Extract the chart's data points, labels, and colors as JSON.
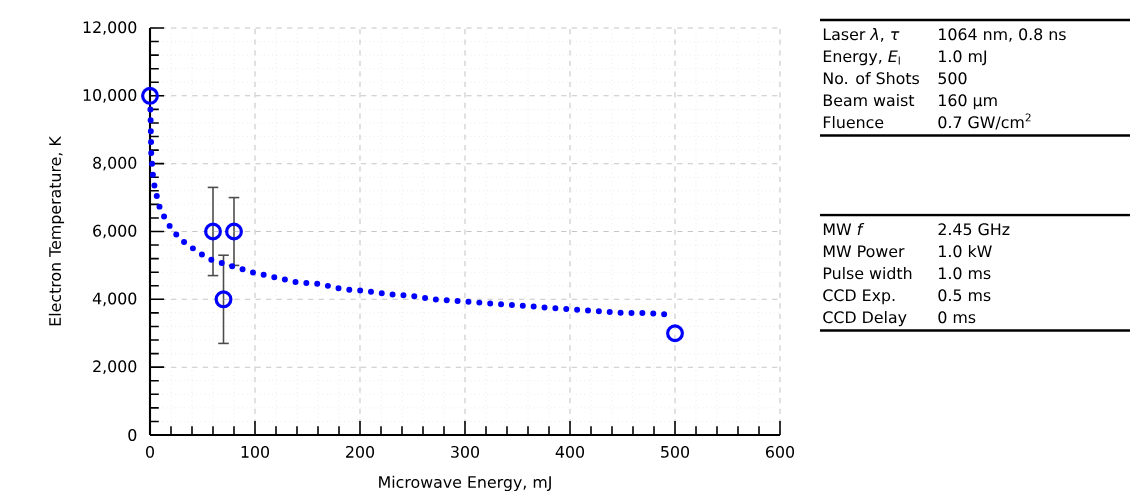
{
  "chart_data": [
    {
      "type": "scatter",
      "xlabel": "Microwave Energy, mJ",
      "ylabel": "Electron Temperature, K",
      "xlim": [
        0,
        600
      ],
      "ylim": [
        0,
        12000
      ],
      "xticks": [
        0,
        100,
        200,
        300,
        400,
        500,
        600
      ],
      "yticks": [
        0,
        {
          "value": 2000,
          "label": "2,000"
        },
        {
          "value": 4000,
          "label": "4,000"
        },
        {
          "value": 6000,
          "label": "6,000"
        },
        {
          "value": 8000,
          "label": "8,000"
        },
        {
          "value": 10000,
          "label": "10,000"
        },
        {
          "value": 12000,
          "label": "12,000"
        }
      ],
      "grid": true,
      "series": [
        {
          "type": "scatter",
          "color": "#0000ff",
          "marker": "circle",
          "x": [
            0,
            60,
            70,
            80,
            500
          ],
          "values": [
            10000,
            6000,
            4000,
            6000,
            3000
          ],
          "errors": [
            null,
            1300,
            1300,
            1000,
            null
          ]
        },
        {
          "type": "line",
          "color": "#0000ff",
          "line_style": "dotted",
          "marker": "none",
          "x": [
            0.4,
            1.2,
            3.2,
            6,
            8.8,
            14,
            20,
            28,
            36,
            46,
            55,
            76,
            97,
            119,
            140,
            162,
            183,
            205,
            227,
            249,
            271,
            293,
            315,
            337,
            359,
            381,
            403,
            427,
            449,
            471,
            495
          ],
          "values": [
            9600,
            8300,
            7500,
            7100,
            6750,
            6400,
            6100,
            5800,
            5600,
            5400,
            5200,
            5000,
            4800,
            4650,
            4500,
            4450,
            4300,
            4250,
            4150,
            4100,
            4000,
            3950,
            3900,
            3850,
            3800,
            3750,
            3700,
            3650,
            3600,
            3600,
            3550
          ]
        }
      ]
    },
    {
      "type": "other",
      "annotations": [
        "Laser *λ*, *τ*",
        "1064 nm, 0.8 ns",
        "Energy, *E*$_{l}$",
        "1.0 mJ",
        "No. of Shots",
        "500",
        "Beam waist",
        "160 μm",
        "Fluence",
        "0.7 GW/cm$^{2}$",
        "MW *f*",
        "2.45 GHz",
        "MW Power",
        "1.0 kW",
        "Pulse width",
        "1.0 ms",
        "CCD Exp.",
        "0.5 ms",
        "CCD Delay",
        "0 ms"
      ]
    }
  ]
}
